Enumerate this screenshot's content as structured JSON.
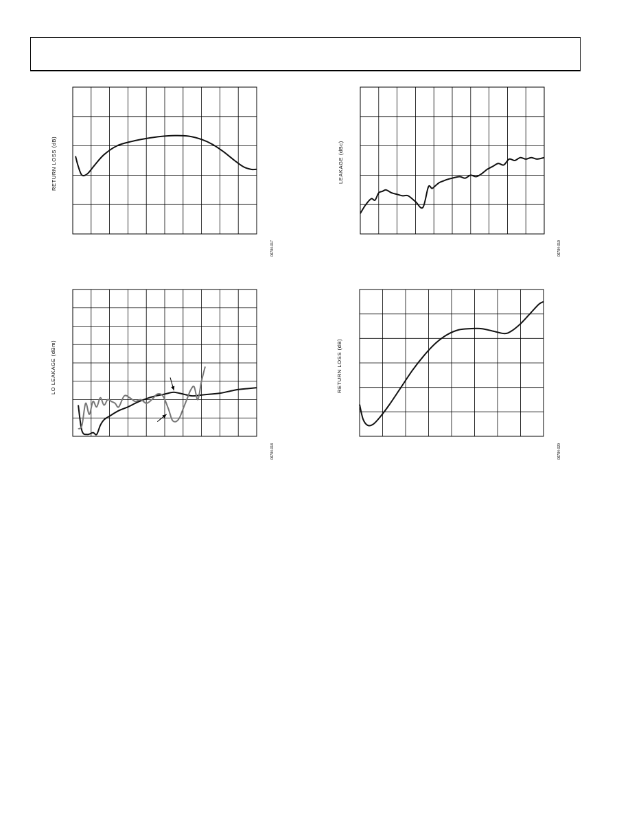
{
  "page": {
    "header_text": ""
  },
  "chart_data": [
    {
      "id": "chart-1",
      "type": "line",
      "title": "",
      "xlabel": "",
      "ylabel": "RETURN LOSS (dB)",
      "figure_code": "06784-017",
      "xlim": [
        0,
        10
      ],
      "ylim": [
        0,
        5
      ],
      "x_gridlines": 10,
      "y_gridlines": 5,
      "grid": true,
      "series": [
        {
          "color": "#111111",
          "x": [
            0.15,
            0.3,
            0.5,
            0.8,
            1.2,
            1.7,
            2.4,
            3.2,
            4.0,
            4.8,
            5.6,
            6.3,
            7.0,
            7.6,
            8.2,
            8.8,
            9.3,
            9.7,
            10.0
          ],
          "y": [
            2.65,
            2.3,
            2.0,
            2.05,
            2.35,
            2.7,
            3.0,
            3.15,
            3.25,
            3.32,
            3.35,
            3.33,
            3.22,
            3.05,
            2.8,
            2.5,
            2.28,
            2.2,
            2.2
          ]
        }
      ]
    },
    {
      "id": "chart-2",
      "type": "line",
      "title": "",
      "xlabel": "",
      "ylabel": "LEAKAGE (dBc)",
      "figure_code": "06784-019",
      "xlim": [
        0,
        10
      ],
      "ylim": [
        0,
        5
      ],
      "x_gridlines": 10,
      "y_gridlines": 5,
      "grid": true,
      "series": [
        {
          "color": "#111111",
          "x": [
            0.0,
            0.3,
            0.6,
            0.8,
            1.0,
            1.2,
            1.4,
            1.7,
            2.0,
            2.3,
            2.6,
            3.0,
            3.4,
            3.7,
            3.9,
            4.1,
            4.3,
            4.5,
            4.7,
            5.0,
            5.4,
            5.7,
            6.0,
            6.3,
            6.6,
            6.9,
            7.2,
            7.5,
            7.8,
            8.1,
            8.4,
            8.7,
            9.0,
            9.3,
            9.6,
            10.0
          ],
          "y": [
            0.7,
            1.0,
            1.2,
            1.15,
            1.4,
            1.45,
            1.5,
            1.4,
            1.35,
            1.3,
            1.3,
            1.1,
            0.9,
            1.6,
            1.55,
            1.65,
            1.75,
            1.8,
            1.85,
            1.9,
            1.95,
            1.9,
            2.0,
            1.95,
            2.05,
            2.2,
            2.3,
            2.4,
            2.35,
            2.55,
            2.5,
            2.6,
            2.55,
            2.6,
            2.55,
            2.6
          ]
        }
      ]
    },
    {
      "id": "chart-3",
      "type": "line",
      "title": "",
      "xlabel": "",
      "ylabel": "LO LEAKAGE (dBm)",
      "figure_code": "06784-018",
      "xlim": [
        0,
        10
      ],
      "ylim": [
        0,
        8
      ],
      "x_gridlines": 10,
      "y_gridlines": 8,
      "grid": true,
      "series": [
        {
          "color": "#111111",
          "x": [
            0.3,
            0.5,
            0.8,
            1.1,
            1.3,
            1.5,
            1.7,
            2.0,
            2.5,
            3.0,
            3.5,
            4.0,
            4.5,
            5.0,
            5.5,
            6.0,
            6.5,
            7.0,
            7.5,
            8.0,
            8.5,
            9.0,
            9.5,
            10.0
          ],
          "y": [
            1.7,
            0.3,
            0.1,
            0.2,
            0.1,
            0.6,
            0.9,
            1.1,
            1.4,
            1.6,
            1.85,
            2.05,
            2.2,
            2.3,
            2.4,
            2.3,
            2.2,
            2.25,
            2.3,
            2.35,
            2.45,
            2.55,
            2.6,
            2.65
          ]
        },
        {
          "color": "#777777",
          "x": [
            0.3,
            0.5,
            0.7,
            0.9,
            1.1,
            1.3,
            1.5,
            1.7,
            1.9,
            2.1,
            2.3,
            2.5,
            2.8,
            3.1,
            3.4,
            3.7,
            4.0,
            4.3,
            4.6,
            4.9,
            5.2,
            5.4,
            5.6,
            5.8,
            6.0,
            6.2,
            6.4,
            6.6,
            6.8,
            7.0,
            7.2
          ],
          "y": [
            0.4,
            0.6,
            1.8,
            1.2,
            1.9,
            1.6,
            2.1,
            1.7,
            2.0,
            1.9,
            1.8,
            1.6,
            2.2,
            2.1,
            1.9,
            2.0,
            1.8,
            2.0,
            2.3,
            2.2,
            1.5,
            0.9,
            0.8,
            1.0,
            1.5,
            2.0,
            2.5,
            2.7,
            2.0,
            3.0,
            3.8
          ]
        }
      ],
      "annotations": [
        {
          "x1": 5.3,
          "y1": 3.2,
          "x2": 5.5,
          "y2": 2.5
        },
        {
          "x1": 4.6,
          "y1": 0.8,
          "x2": 5.1,
          "y2": 1.2
        }
      ]
    },
    {
      "id": "chart-4",
      "type": "line",
      "title": "",
      "xlabel": "",
      "ylabel": "RETURN LOSS (dB)",
      "figure_code": "06784-020",
      "xlim": [
        0,
        8
      ],
      "ylim": [
        0,
        6
      ],
      "x_gridlines": 8,
      "y_gridlines": 6,
      "grid": true,
      "series": [
        {
          "color": "#111111",
          "x": [
            0.0,
            0.15,
            0.35,
            0.6,
            0.9,
            1.3,
            1.8,
            2.3,
            2.8,
            3.3,
            3.8,
            4.3,
            4.8,
            5.3,
            5.8,
            6.3,
            6.6,
            7.0,
            7.4,
            7.8,
            8.0
          ],
          "y": [
            1.3,
            0.7,
            0.45,
            0.5,
            0.8,
            1.3,
            2.0,
            2.7,
            3.3,
            3.8,
            4.15,
            4.35,
            4.4,
            4.4,
            4.3,
            4.2,
            4.3,
            4.6,
            5.0,
            5.4,
            5.5
          ]
        }
      ]
    }
  ]
}
